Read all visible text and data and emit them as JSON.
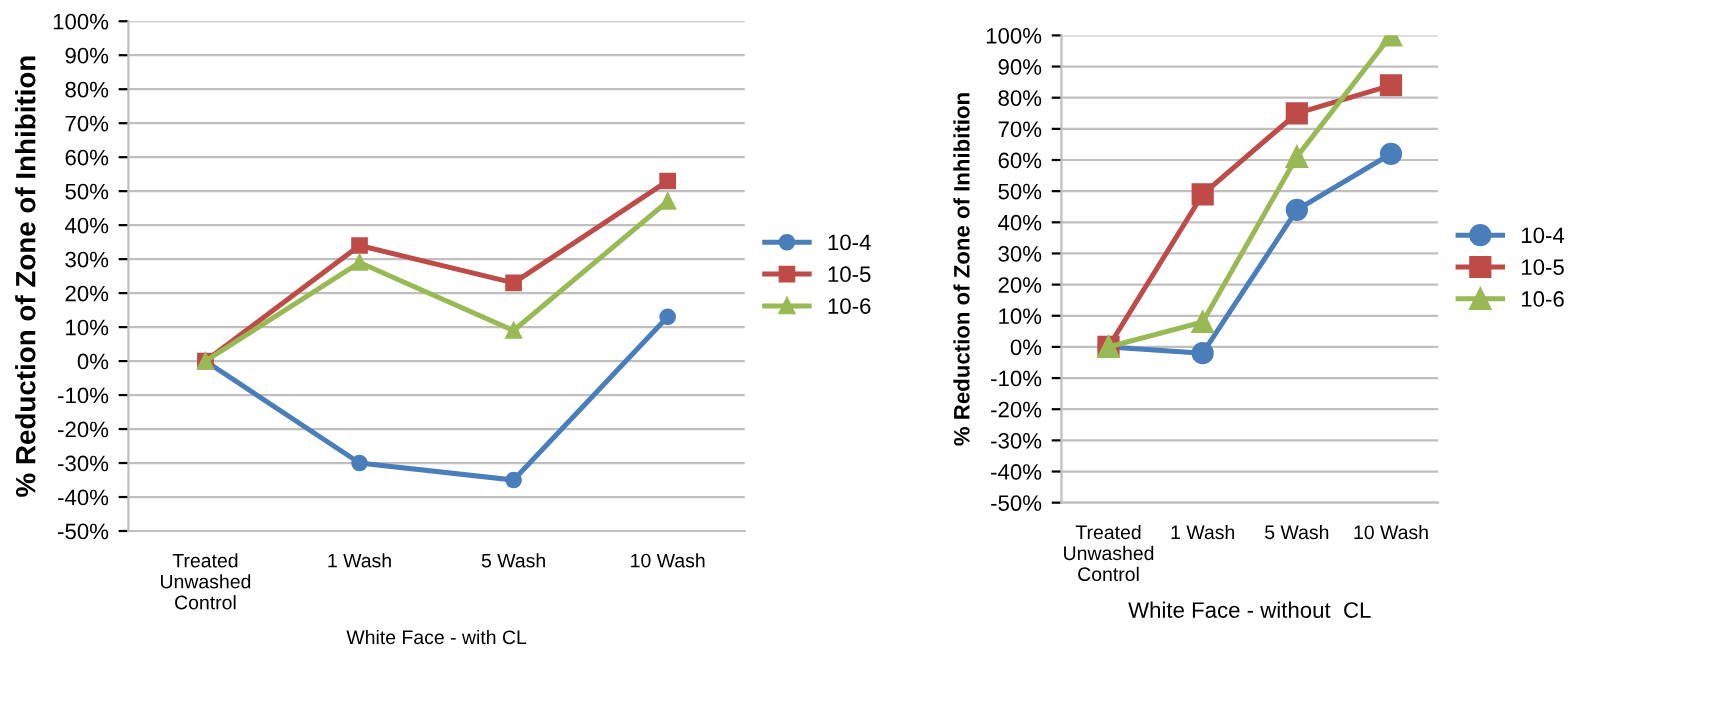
{
  "chart_data": [
    {
      "type": "line",
      "ylabel": "% Reduction of Zone of Inhibition",
      "xlabel": "White Face - with CL",
      "categories": [
        "Treated\nUnwashed\nControl",
        "1 Wash",
        "5 Wash",
        "10 Wash"
      ],
      "series": [
        {
          "name": "10-4",
          "color": "#4a7ebb",
          "marker": "circle",
          "values": [
            0,
            -30,
            -35,
            13
          ]
        },
        {
          "name": "10-5",
          "color": "#be4b48",
          "marker": "square",
          "values": [
            0,
            34,
            23,
            53
          ]
        },
        {
          "name": "10-6",
          "color": "#98b954",
          "marker": "triangle",
          "values": [
            0,
            29,
            9,
            47
          ]
        }
      ],
      "ylim": [
        -50,
        100
      ],
      "yticks": [
        {
          "value": -50,
          "label": "-50%"
        },
        {
          "value": -40,
          "label": "-40%"
        },
        {
          "value": -30,
          "label": "-30%"
        },
        {
          "value": -20,
          "label": "-20%"
        },
        {
          "value": -10,
          "label": "-10%"
        },
        {
          "value": 0,
          "label": "0%"
        },
        {
          "value": 10,
          "label": "10%"
        },
        {
          "value": 20,
          "label": "20%"
        },
        {
          "value": 30,
          "label": "30%"
        },
        {
          "value": 40,
          "label": "40%"
        },
        {
          "value": 50,
          "label": "50%"
        },
        {
          "value": 60,
          "label": "60%"
        },
        {
          "value": 70,
          "label": "70%"
        },
        {
          "value": 80,
          "label": "80%"
        },
        {
          "value": 90,
          "label": "90%"
        },
        {
          "value": 100,
          "label": "100%"
        }
      ],
      "grid": "y",
      "legend": "right"
    },
    {
      "type": "line",
      "ylabel": "% Reduction of Zone of Inhibition",
      "xlabel": "White Face - without  CL",
      "categories": [
        "Treated\nUnwashed\nControl",
        "1 Wash",
        "5 Wash",
        "10 Wash"
      ],
      "series": [
        {
          "name": "10-4",
          "color": "#4a7ebb",
          "marker": "circle",
          "values": [
            0,
            -2,
            44,
            62
          ]
        },
        {
          "name": "10-5",
          "color": "#be4b48",
          "marker": "square",
          "values": [
            0,
            49,
            75,
            84
          ]
        },
        {
          "name": "10-6",
          "color": "#98b954",
          "marker": "triangle",
          "values": [
            0,
            8,
            61,
            100
          ]
        }
      ],
      "ylim": [
        -50,
        100
      ],
      "yticks": [
        {
          "value": -50,
          "label": "-50%"
        },
        {
          "value": -40,
          "label": "-40%"
        },
        {
          "value": -30,
          "label": "-30%"
        },
        {
          "value": -20,
          "label": "-20%"
        },
        {
          "value": -10,
          "label": "-10%"
        },
        {
          "value": 0,
          "label": "0%"
        },
        {
          "value": 10,
          "label": "10%"
        },
        {
          "value": 20,
          "label": "20%"
        },
        {
          "value": 30,
          "label": "30%"
        },
        {
          "value": 40,
          "label": "40%"
        },
        {
          "value": 50,
          "label": "50%"
        },
        {
          "value": 60,
          "label": "60%"
        },
        {
          "value": 70,
          "label": "70%"
        },
        {
          "value": 80,
          "label": "80%"
        },
        {
          "value": 90,
          "label": "90%"
        },
        {
          "value": 100,
          "label": "100%"
        }
      ],
      "grid": "y",
      "legend": "right"
    }
  ]
}
